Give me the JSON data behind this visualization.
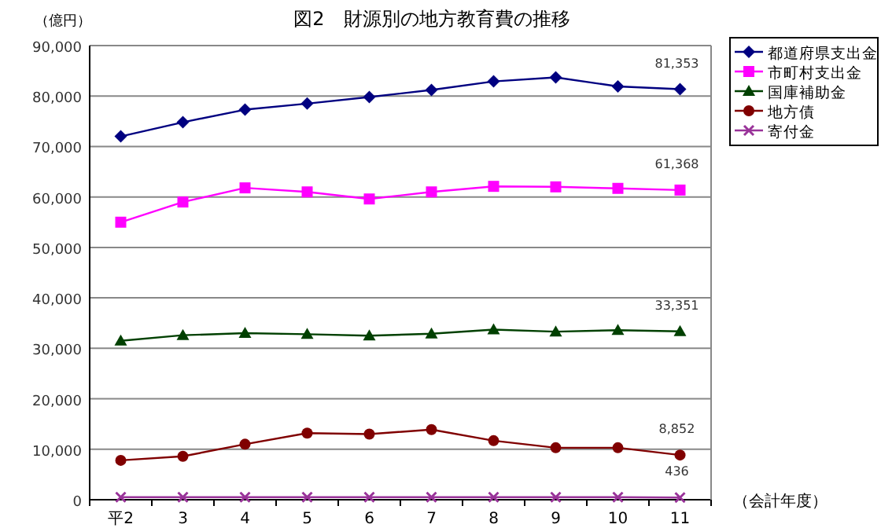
{
  "chart_data": {
    "type": "line",
    "title": "図2　財源別の地方教育費の推移",
    "ylabel": "（億円）",
    "xlabel": "（会計年度）",
    "categories": [
      "平2",
      "3",
      "4",
      "5",
      "6",
      "7",
      "8",
      "9",
      "10",
      "11"
    ],
    "ylim": [
      0,
      90000
    ],
    "yticks": [
      {
        "value": 0,
        "label": "0"
      },
      {
        "value": 10000,
        "label": "10,000"
      },
      {
        "value": 20000,
        "label": "20,000"
      },
      {
        "value": 30000,
        "label": "30,000"
      },
      {
        "value": 40000,
        "label": "40,000"
      },
      {
        "value": 50000,
        "label": "50,000"
      },
      {
        "value": 60000,
        "label": "60,000"
      },
      {
        "value": 70000,
        "label": "70,000"
      },
      {
        "value": 80000,
        "label": "80,000"
      },
      {
        "value": 90000,
        "label": "90,000"
      }
    ],
    "grid": "y",
    "legend": "top right",
    "series": [
      {
        "name": "都道府県支出金",
        "color": "#000080",
        "marker": "diamond",
        "values": [
          72000,
          74800,
          77300,
          78500,
          79800,
          81200,
          82900,
          83700,
          81900,
          81353
        ],
        "value_labels": [
          null,
          null,
          null,
          null,
          null,
          null,
          null,
          null,
          null,
          "81,353"
        ]
      },
      {
        "name": "市町村支出金",
        "color": "#ff00ff",
        "marker": "square",
        "values": [
          55000,
          59000,
          61800,
          61000,
          59600,
          61000,
          62100,
          62000,
          61700,
          61368
        ],
        "value_labels": [
          null,
          null,
          null,
          null,
          null,
          null,
          null,
          null,
          null,
          "61,368"
        ]
      },
      {
        "name": "国庫補助金",
        "color": "#004000",
        "marker": "triangle",
        "values": [
          31500,
          32600,
          33000,
          32800,
          32500,
          32900,
          33700,
          33300,
          33600,
          33351
        ],
        "value_labels": [
          null,
          null,
          null,
          null,
          null,
          null,
          null,
          null,
          null,
          "33,351"
        ]
      },
      {
        "name": "地方債",
        "color": "#800000",
        "marker": "circle",
        "values": [
          7800,
          8600,
          11000,
          13200,
          13000,
          13900,
          11700,
          10300,
          10300,
          8852
        ],
        "value_labels": [
          null,
          null,
          null,
          null,
          null,
          null,
          null,
          null,
          null,
          "8,852"
        ]
      },
      {
        "name": "寄付金",
        "color": "#993399",
        "marker": "cross",
        "values": [
          500,
          500,
          500,
          500,
          500,
          500,
          500,
          500,
          500,
          436
        ],
        "value_labels": [
          null,
          null,
          null,
          null,
          null,
          null,
          null,
          null,
          null,
          "436"
        ]
      }
    ]
  }
}
